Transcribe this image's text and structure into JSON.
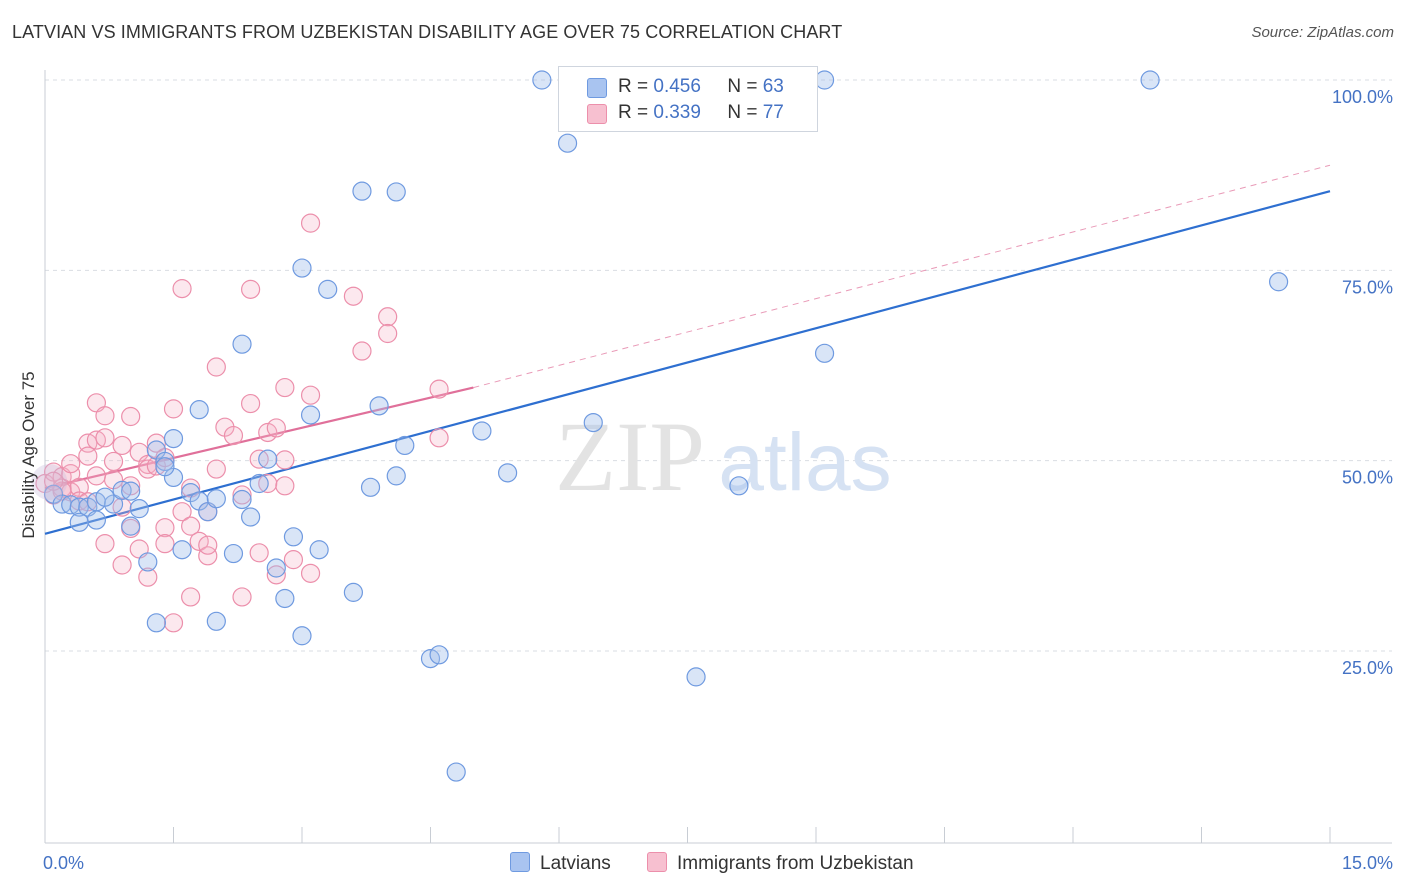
{
  "header": {
    "title": "LATVIAN VS IMMIGRANTS FROM UZBEKISTAN DISABILITY AGE OVER 75 CORRELATION CHART",
    "source": "Source: ZipAtlas.com"
  },
  "watermark": {
    "zip": "ZIP",
    "atlas": "atlas"
  },
  "legend_stats": [
    {
      "r_label": "R =",
      "r_value": "0.456",
      "n_label": "N =",
      "n_value": "63",
      "color": "#a9c4f0",
      "border": "#6f9ae0"
    },
    {
      "r_label": "R =",
      "r_value": "0.339",
      "n_label": "N =",
      "n_value": "77",
      "color": "#f7c0d0",
      "border": "#ec8fab"
    }
  ],
  "colors": {
    "blue_fill": "rgba(160,190,235,0.40)",
    "blue_stroke": "#6f9ae0",
    "blue_line": "#2e6fd0",
    "pink_fill": "rgba(245,180,200,0.30)",
    "pink_stroke": "#ec8fab",
    "pink_line": "#e0709a",
    "grid": "#d9dde3",
    "tick_text": "#4472c4"
  },
  "chart_data": {
    "type": "scatter",
    "title": "LATVIAN VS IMMIGRANTS FROM UZBEKISTAN DISABILITY AGE OVER 75 CORRELATION CHART",
    "xlabel": "",
    "ylabel": "Disability Age Over 75",
    "xlim": [
      0,
      15
    ],
    "ylim": [
      0,
      102
    ],
    "x_tick_labels": [
      {
        "value": 0,
        "label": "0.0%"
      },
      {
        "value": 15,
        "label": "15.0%"
      }
    ],
    "y_tick_labels": [
      {
        "value": 25,
        "label": "25.0%"
      },
      {
        "value": 50,
        "label": "50.0%"
      },
      {
        "value": 75,
        "label": "75.0%"
      },
      {
        "value": 100,
        "label": "100.0%"
      }
    ],
    "grid": true,
    "legend_position": "bottom",
    "series": [
      {
        "name": "Latvians",
        "color": "#6f9ae0",
        "r": 0.456,
        "n": 63,
        "trend": {
          "x": [
            0,
            15
          ],
          "y": [
            40.4,
            85.4
          ],
          "style": "solid"
        },
        "points": [
          [
            0.1,
            45.6
          ],
          [
            0.2,
            44.3
          ],
          [
            0.3,
            44.2
          ],
          [
            0.4,
            43.9
          ],
          [
            0.5,
            43.9
          ],
          [
            0.6,
            42.2
          ],
          [
            0.6,
            44.6
          ],
          [
            0.8,
            44.3
          ],
          [
            0.9,
            46.1
          ],
          [
            1.0,
            41.4
          ],
          [
            1.1,
            43.7
          ],
          [
            1.2,
            36.7
          ],
          [
            1.3,
            28.7
          ],
          [
            1.3,
            51.4
          ],
          [
            1.4,
            49.9
          ],
          [
            1.5,
            47.8
          ],
          [
            1.5,
            52.9
          ],
          [
            1.6,
            38.3
          ],
          [
            1.7,
            45.8
          ],
          [
            1.8,
            44.7
          ],
          [
            1.8,
            56.7
          ],
          [
            1.9,
            43.3
          ],
          [
            2.0,
            45.0
          ],
          [
            2.0,
            28.9
          ],
          [
            2.2,
            37.8
          ],
          [
            2.3,
            44.9
          ],
          [
            2.3,
            65.3
          ],
          [
            2.5,
            47.0
          ],
          [
            2.6,
            50.2
          ],
          [
            2.7,
            35.9
          ],
          [
            2.8,
            31.9
          ],
          [
            2.9,
            40.0
          ],
          [
            3.0,
            27.0
          ],
          [
            3.0,
            75.3
          ],
          [
            3.1,
            56.0
          ],
          [
            3.2,
            38.3
          ],
          [
            3.3,
            72.5
          ],
          [
            3.6,
            32.7
          ],
          [
            3.7,
            85.4
          ],
          [
            3.8,
            46.5
          ],
          [
            3.9,
            57.2
          ],
          [
            4.1,
            48.0
          ],
          [
            4.1,
            85.3
          ],
          [
            4.2,
            52.0
          ],
          [
            4.5,
            24.0
          ],
          [
            4.6,
            24.5
          ],
          [
            5.1,
            53.9
          ],
          [
            5.4,
            48.4
          ],
          [
            5.8,
            100.0
          ],
          [
            6.1,
            91.7
          ],
          [
            6.4,
            55.0
          ],
          [
            7.6,
            21.6
          ],
          [
            8.1,
            46.7
          ],
          [
            9.1,
            64.1
          ],
          [
            9.1,
            100.0
          ],
          [
            12.9,
            100.0
          ],
          [
            14.4,
            73.5
          ],
          [
            4.8,
            9.1
          ],
          [
            2.4,
            42.6
          ],
          [
            1.4,
            49.2
          ],
          [
            0.7,
            45.2
          ],
          [
            1.0,
            46.0
          ],
          [
            0.4,
            41.9
          ]
        ]
      },
      {
        "name": "Immigrants from Uzbekistan",
        "color": "#ec8fab",
        "r": 0.339,
        "n": 77,
        "trend": {
          "x": [
            0,
            5
          ],
          "y": [
            46.4,
            59.6
          ],
          "style": "solid"
        },
        "trend_ext": {
          "x": [
            5,
            15
          ],
          "y": [
            59.6,
            88.8
          ],
          "style": "dashed"
        },
        "points": [
          [
            0.0,
            47.0
          ],
          [
            0.1,
            45.5
          ],
          [
            0.1,
            48.5
          ],
          [
            0.2,
            47.9
          ],
          [
            0.2,
            46.4
          ],
          [
            0.3,
            45.9
          ],
          [
            0.3,
            48.3
          ],
          [
            0.3,
            49.6
          ],
          [
            0.4,
            46.5
          ],
          [
            0.4,
            44.7
          ],
          [
            0.5,
            44.6
          ],
          [
            0.5,
            52.3
          ],
          [
            0.5,
            50.6
          ],
          [
            0.6,
            52.7
          ],
          [
            0.6,
            48.0
          ],
          [
            0.6,
            57.6
          ],
          [
            0.7,
            53.0
          ],
          [
            0.7,
            55.9
          ],
          [
            0.7,
            39.1
          ],
          [
            0.8,
            47.5
          ],
          [
            0.8,
            49.9
          ],
          [
            0.9,
            43.9
          ],
          [
            0.9,
            36.3
          ],
          [
            0.9,
            52.0
          ],
          [
            1.0,
            55.8
          ],
          [
            1.0,
            46.7
          ],
          [
            1.0,
            41.1
          ],
          [
            1.1,
            38.4
          ],
          [
            1.1,
            51.1
          ],
          [
            1.2,
            49.5
          ],
          [
            1.2,
            48.9
          ],
          [
            1.2,
            34.7
          ],
          [
            1.3,
            49.3
          ],
          [
            1.3,
            52.3
          ],
          [
            1.4,
            41.2
          ],
          [
            1.4,
            39.1
          ],
          [
            1.4,
            50.4
          ],
          [
            1.5,
            28.7
          ],
          [
            1.5,
            56.8
          ],
          [
            1.6,
            43.3
          ],
          [
            1.6,
            72.6
          ],
          [
            1.7,
            32.1
          ],
          [
            1.7,
            41.4
          ],
          [
            1.7,
            46.4
          ],
          [
            1.8,
            39.4
          ],
          [
            1.9,
            43.3
          ],
          [
            1.9,
            37.5
          ],
          [
            1.9,
            38.9
          ],
          [
            2.0,
            62.3
          ],
          [
            2.0,
            48.9
          ],
          [
            2.1,
            54.4
          ],
          [
            2.2,
            53.3
          ],
          [
            2.3,
            45.5
          ],
          [
            2.3,
            32.1
          ],
          [
            2.4,
            72.5
          ],
          [
            2.4,
            57.5
          ],
          [
            2.5,
            50.2
          ],
          [
            2.5,
            37.9
          ],
          [
            2.6,
            53.7
          ],
          [
            2.6,
            47.0
          ],
          [
            2.7,
            35.0
          ],
          [
            2.7,
            54.3
          ],
          [
            2.8,
            50.1
          ],
          [
            2.8,
            59.6
          ],
          [
            2.8,
            46.7
          ],
          [
            2.9,
            37.0
          ],
          [
            3.1,
            35.2
          ],
          [
            3.1,
            81.2
          ],
          [
            3.1,
            58.6
          ],
          [
            3.6,
            71.6
          ],
          [
            3.7,
            64.4
          ],
          [
            4.0,
            68.9
          ],
          [
            4.0,
            66.7
          ],
          [
            4.6,
            59.4
          ],
          [
            4.6,
            53.0
          ],
          [
            0.2,
            46.0
          ],
          [
            0.1,
            47.3
          ]
        ]
      }
    ]
  },
  "bottom_legend": [
    {
      "label": "Latvians"
    },
    {
      "label": "Immigrants from Uzbekistan"
    }
  ]
}
